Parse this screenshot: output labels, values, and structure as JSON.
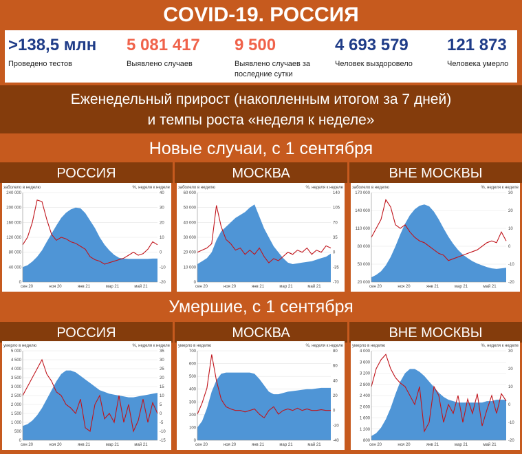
{
  "title": "COVID-19. РОССИЯ",
  "stats": [
    {
      "value": ">138,5 млн",
      "label": "Проведено тестов",
      "color": "#1f3c88"
    },
    {
      "value": "5 081 417",
      "label": "Выявлено случаев",
      "color": "#f0624a"
    },
    {
      "value": "9 500",
      "label": "Выявлено случаев за последние сутки",
      "color": "#f0624a"
    },
    {
      "value": "4 693 579",
      "label": "Человек выздоровело",
      "color": "#1f3c88"
    },
    {
      "value": "121 873",
      "label": "Человека умерло",
      "color": "#1f3c88"
    }
  ],
  "subtitle_line1": "Еженедельный прирост (накопленным итогом за 7 дней)",
  "subtitle_line2": "и темпы роста «неделя к неделе»",
  "section_cases": "Новые случаи, с 1 сентября",
  "section_deaths": "Умершие, с 1 сентября",
  "colors": {
    "area": "#4f95d6",
    "line": "#c0141b",
    "accent": "#c65a1e",
    "dark": "#843c0c"
  },
  "chart_data": [
    {
      "type": "area",
      "panel_title": "РОССИЯ",
      "left_label": "заболело в неделю",
      "right_label": "%, неделя к неделе",
      "left_ticks": [
        "240 000",
        "200 000",
        "160 000",
        "120 000",
        "80 000",
        "40 000",
        "0"
      ],
      "right_ticks": [
        "40",
        "30",
        "20",
        "10",
        "0",
        "-10",
        "-20"
      ],
      "x_ticks": [
        "сен 20",
        "ноя 20",
        "янв 21",
        "мар 21",
        "май 21"
      ],
      "ylim": [
        0,
        240000
      ],
      "y2lim": [
        -20,
        40
      ],
      "area": [
        40000,
        45000,
        55000,
        68000,
        85000,
        108000,
        130000,
        152000,
        172000,
        186000,
        195000,
        200000,
        198000,
        185000,
        165000,
        145000,
        120000,
        100000,
        85000,
        73000,
        65000,
        63000,
        62000,
        62000,
        62000,
        62000,
        62000,
        63000,
        63000
      ],
      "line": [
        5,
        10,
        20,
        35,
        34,
        22,
        12,
        8,
        10,
        9,
        7,
        6,
        4,
        2,
        -3,
        -5,
        -6,
        -8,
        -7,
        -6,
        -5,
        -4,
        -2,
        0,
        -2,
        -1,
        2,
        7,
        5
      ]
    },
    {
      "type": "area",
      "panel_title": "МОСКВА",
      "left_label": "заболело в неделю",
      "right_label": "%, неделя к неделе",
      "left_ticks": [
        "60 000",
        "50 000",
        "40 000",
        "30 000",
        "20 000",
        "10 000",
        "0"
      ],
      "right_ticks": [
        "140",
        "105",
        "70",
        "35",
        "0",
        "-35",
        "-70"
      ],
      "x_ticks": [
        "сен 20",
        "ноя 20",
        "янв 21",
        "мар 21",
        "май 21"
      ],
      "ylim": [
        0,
        60000
      ],
      "y2lim": [
        -70,
        140
      ],
      "area": [
        12000,
        14000,
        16000,
        20000,
        28000,
        34000,
        37000,
        40000,
        43000,
        45000,
        47000,
        50000,
        52000,
        44000,
        36000,
        30000,
        24000,
        20000,
        16000,
        13000,
        12000,
        12500,
        13000,
        13500,
        14000,
        15000,
        16000,
        17000,
        19000
      ],
      "line": [
        0,
        5,
        10,
        20,
        110,
        60,
        30,
        20,
        5,
        10,
        -5,
        5,
        -5,
        10,
        -10,
        -25,
        -15,
        -20,
        -10,
        0,
        -5,
        5,
        0,
        10,
        -5,
        5,
        0,
        15,
        10
      ]
    },
    {
      "type": "area",
      "panel_title": "ВНЕ МОСКВЫ",
      "left_label": "заболело в неделю",
      "right_label": "%, неделя к неделе",
      "left_ticks": [
        "170 000",
        "140 000",
        "110 000",
        "80 000",
        "50 000",
        "20 000"
      ],
      "right_ticks": [
        "30",
        "20",
        "10",
        "0",
        "-10",
        "-20"
      ],
      "x_ticks": [
        "сен 20",
        "ноя 20",
        "янв 21",
        "мар 21",
        "май 21"
      ],
      "ylim": [
        20000,
        170000
      ],
      "y2lim": [
        -20,
        30
      ],
      "area": [
        28000,
        32000,
        38000,
        48000,
        62000,
        80000,
        100000,
        118000,
        132000,
        142000,
        148000,
        150000,
        147000,
        138000,
        125000,
        110000,
        96000,
        84000,
        74000,
        66000,
        60000,
        55000,
        51000,
        48000,
        45000,
        43000,
        42000,
        43000,
        44000
      ],
      "line": [
        5,
        10,
        15,
        26,
        22,
        12,
        10,
        12,
        8,
        5,
        3,
        2,
        0,
        -2,
        -4,
        -5,
        -8,
        -7,
        -6,
        -5,
        -4,
        -3,
        -2,
        0,
        2,
        3,
        2,
        8,
        3
      ]
    },
    {
      "type": "area",
      "panel_title": "РОССИЯ",
      "left_label": "умерло в неделю",
      "right_label": "%, неделя к неделе",
      "left_ticks": [
        "5 000",
        "4 500",
        "4 000",
        "3 500",
        "3 000",
        "2 500",
        "2 000",
        "1 500",
        "1 000",
        "500",
        "0"
      ],
      "right_ticks": [
        "35",
        "30",
        "25",
        "20",
        "15",
        "10",
        "5",
        "0",
        "-5",
        "-10",
        "-15"
      ],
      "x_ticks": [
        "сен 20",
        "ноя 20",
        "янв 21",
        "мар 21",
        "май 21"
      ],
      "ylim": [
        0,
        5000
      ],
      "y2lim": [
        -15,
        35
      ],
      "area": [
        800,
        900,
        1100,
        1400,
        1800,
        2300,
        2800,
        3300,
        3700,
        3900,
        3900,
        3800,
        3600,
        3400,
        3200,
        3000,
        2800,
        2700,
        2600,
        2550,
        2500,
        2450,
        2400,
        2400,
        2450,
        2500,
        2550,
        2600,
        2650
      ],
      "line": [
        10,
        15,
        20,
        25,
        30,
        22,
        18,
        12,
        10,
        5,
        3,
        0,
        8,
        -8,
        -10,
        5,
        10,
        -3,
        0,
        -5,
        10,
        -5,
        5,
        -10,
        -4,
        8,
        -5,
        6,
        0
      ]
    },
    {
      "type": "area",
      "panel_title": "МОСКВА",
      "left_label": "умерло в неделю",
      "right_label": "%, неделя к неделе",
      "left_ticks": [
        "700",
        "600",
        "500",
        "400",
        "300",
        "200",
        "100",
        "0"
      ],
      "right_ticks": [
        "80",
        "60",
        "40",
        "20",
        "0",
        "-20",
        "-40"
      ],
      "x_ticks": [
        "сен 20",
        "ноя 20",
        "янв 21",
        "мар 21",
        "май 21"
      ],
      "ylim": [
        0,
        700
      ],
      "y2lim": [
        -40,
        80
      ],
      "area": [
        100,
        150,
        250,
        380,
        470,
        520,
        530,
        530,
        530,
        530,
        530,
        530,
        520,
        480,
        430,
        380,
        360,
        360,
        370,
        380,
        385,
        390,
        395,
        400,
        400,
        405,
        410,
        410,
        410
      ],
      "line": [
        -5,
        10,
        30,
        75,
        40,
        15,
        5,
        2,
        0,
        0,
        -2,
        0,
        2,
        -5,
        -10,
        0,
        5,
        -5,
        0,
        2,
        0,
        3,
        0,
        2,
        0,
        0,
        1,
        0,
        0
      ]
    },
    {
      "type": "area",
      "panel_title": "ВНЕ МОСКВЫ",
      "left_label": "умерло в неделю",
      "right_label": "%, неделя к неделе",
      "left_ticks": [
        "4 000",
        "3 600",
        "3 200",
        "2 800",
        "2 400",
        "2 000",
        "1 600",
        "1 200",
        "800"
      ],
      "right_ticks": [
        "30",
        "20",
        "10",
        "0",
        "-10",
        "-20"
      ],
      "x_ticks": [
        "сен 20",
        "ноя 20",
        "янв 21",
        "мар 21",
        "май 21"
      ],
      "ylim": [
        800,
        4000
      ],
      "y2lim": [
        -20,
        30
      ],
      "area": [
        950,
        1050,
        1250,
        1550,
        1950,
        2450,
        2900,
        3200,
        3350,
        3350,
        3250,
        3100,
        2900,
        2700,
        2500,
        2350,
        2250,
        2200,
        2150,
        2150,
        2150,
        2150,
        2150,
        2150,
        2200,
        2200,
        2250,
        2250,
        2250
      ],
      "line": [
        10,
        20,
        25,
        28,
        20,
        15,
        12,
        10,
        5,
        0,
        10,
        -15,
        -10,
        10,
        5,
        -10,
        0,
        -5,
        5,
        -10,
        3,
        -5,
        6,
        -12,
        -3,
        5,
        -5,
        6,
        2
      ]
    }
  ]
}
